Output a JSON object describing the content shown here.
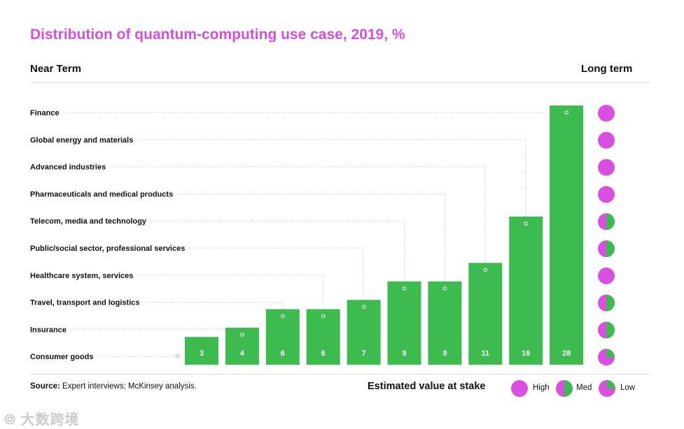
{
  "chart_data": {
    "type": "bar",
    "title": "Distribution of quantum-computing use case, 2019, %",
    "left_header": "Near Term",
    "right_header": "Long term",
    "categories": [
      "Finance",
      "Global energy and materials",
      "Advanced industries",
      "Pharmaceuticals and medical products",
      "Telecom, media and technology",
      "Public/social sector, professional services",
      "Healthcare system, services",
      "Travel, transport and logistics",
      "Insurance",
      "Consumer goods"
    ],
    "values": [
      28,
      16,
      11,
      9,
      9,
      7,
      6,
      6,
      4,
      3
    ],
    "value_at_stake": [
      "High",
      "High",
      "High",
      "High",
      "Med",
      "Med",
      "High",
      "Med",
      "Med",
      "Low"
    ],
    "legend": {
      "title": "Estimated value at stake",
      "items": [
        "High",
        "Med",
        "Low"
      ]
    },
    "ylim": [
      0,
      28
    ]
  },
  "source_label": "Source:",
  "source_text": " Expert interviews; McKinsey analysis.",
  "watermark": "大数跨境",
  "colors": {
    "magenta": "#d94fe0",
    "green": "#3dbb4f",
    "title": "#d44fdc"
  }
}
